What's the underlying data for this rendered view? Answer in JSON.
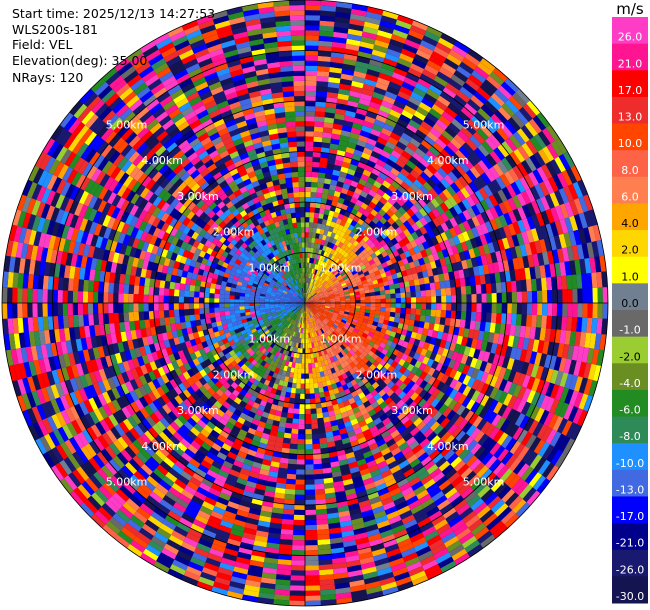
{
  "chart_data": {
    "type": "heatmap",
    "subtype": "radar-ppi",
    "info": {
      "start_time": "Start time: 2025/12/13 14:27:53",
      "instrument": "WLS200s-181",
      "field": "Field: VEL",
      "elevation": "Elevation(deg): 35.00",
      "nrays": "NRays: 120"
    },
    "n_rays": 120,
    "elevation_deg": 35.0,
    "max_range_km": 6.0,
    "range_rings_km": [
      1.0,
      2.0,
      3.0,
      4.0,
      5.0,
      6.0
    ],
    "ring_labels": [
      "1.00km",
      "2.00km",
      "3.00km",
      "4.00km",
      "5.00km"
    ],
    "velocity_pattern": {
      "description_values": "radial velocity ranges roughly -10 to +13 m/s within ~1.7 km, noise (full scale) beyond",
      "clean_range_km": 1.7,
      "toward_sector": "west/north-west negative (blue/green)",
      "away_sector": "east/south-east positive (orange/red/yellow)"
    },
    "colorbar": {
      "unit": "m/s",
      "ticks": [
        "26.0",
        "21.0",
        "17.0",
        "13.0",
        "10.0",
        "8.0",
        "6.0",
        "4.0",
        "2.0",
        "1.0",
        "0.0",
        "-1.0",
        "-2.0",
        "-4.0",
        "-6.0",
        "-8.0",
        "-10.0",
        "-13.0",
        "-17.0",
        "-21.0",
        "-26.0",
        "-30.0"
      ],
      "boundaries": [
        30,
        26,
        21,
        17,
        13,
        10,
        8,
        6,
        4,
        2,
        1,
        0,
        -1,
        -2,
        -4,
        -6,
        -8,
        -10,
        -13,
        -17,
        -21,
        -26,
        -30
      ],
      "colors": [
        "#ff3cc6",
        "#ff1491",
        "#ff0000",
        "#ee2c2c",
        "#ff4500",
        "#ff6347",
        "#ff7f50",
        "#ffa500",
        "#ffd700",
        "#ffff00",
        "#708090",
        "#696969",
        "#9acd32",
        "#6b8e23",
        "#228b22",
        "#2e8b57",
        "#1e90ff",
        "#4169e1",
        "#0000ff",
        "#00008b",
        "#191970",
        "#141450"
      ]
    }
  }
}
